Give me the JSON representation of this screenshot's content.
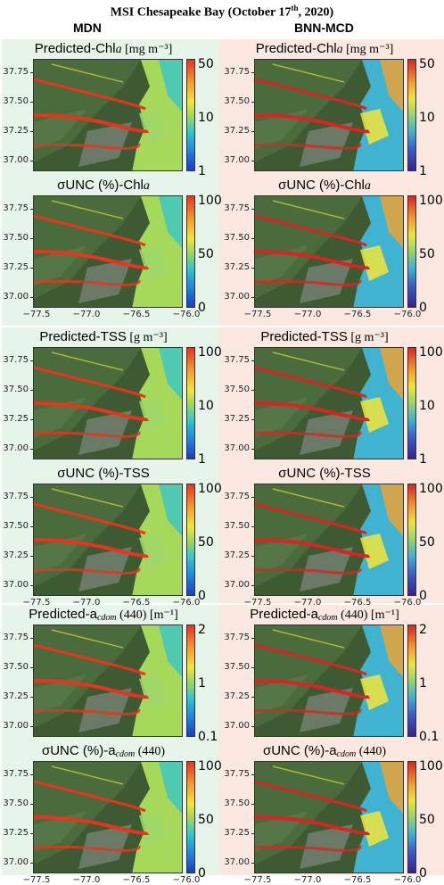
{
  "figure": {
    "title_main": "MSI Chesapeake Bay (October 17",
    "title_sup": "th",
    "title_end": ", 2020)",
    "col_left": "MDN",
    "col_right": "BNN-MCD"
  },
  "axes": {
    "y_ticks": [
      "37.75",
      "37.50",
      "37.25",
      "37.00"
    ],
    "x_ticks": [
      "−77.5",
      "−77.0",
      "−76.5",
      "−76.0"
    ]
  },
  "panels": [
    {
      "row": 1,
      "model": "MDN",
      "title_pre": "Predicted-Chl",
      "title_var": "a",
      "title_unit": " [mg m⁻³]",
      "cbar_ticks": [
        "50",
        "10",
        "1"
      ],
      "cmap": "std"
    },
    {
      "row": 1,
      "model": "BNN-MCD",
      "title_pre": "Predicted-Chl",
      "title_var": "a",
      "title_unit": " [mg m⁻³]",
      "cbar_ticks": [
        "50",
        "10",
        "1"
      ],
      "cmap": "bnn"
    },
    {
      "row": 2,
      "model": "MDN",
      "title_pre": "σUNC (%)-Chl",
      "title_var": "a",
      "title_unit": "",
      "cbar_ticks": [
        "100",
        "50",
        "0"
      ],
      "cmap": "std"
    },
    {
      "row": 2,
      "model": "BNN-MCD",
      "title_pre": "σUNC (%)-Chl",
      "title_var": "a",
      "title_unit": "",
      "cbar_ticks": [
        "100",
        "50",
        "0"
      ],
      "cmap": "bnn"
    },
    {
      "row": 3,
      "model": "MDN",
      "title_pre": "Predicted-TSS",
      "title_var": "",
      "title_unit": " [g m⁻³]",
      "cbar_ticks": [
        "100",
        "10",
        "1"
      ],
      "cmap": "std"
    },
    {
      "row": 3,
      "model": "BNN-MCD",
      "title_pre": "Predicted-TSS",
      "title_var": "",
      "title_unit": " [g m⁻³]",
      "cbar_ticks": [
        "100",
        "10",
        "1"
      ],
      "cmap": "bnn"
    },
    {
      "row": 4,
      "model": "MDN",
      "title_pre": "σUNC (%)-TSS",
      "title_var": "",
      "title_unit": "",
      "cbar_ticks": [
        "100",
        "50",
        "0"
      ],
      "cmap": "std"
    },
    {
      "row": 4,
      "model": "BNN-MCD",
      "title_pre": "σUNC (%)-TSS",
      "title_var": "",
      "title_unit": "",
      "cbar_ticks": [
        "100",
        "50",
        "0"
      ],
      "cmap": "bnn"
    },
    {
      "row": 5,
      "model": "MDN",
      "title_pre": "Predicted-a",
      "title_var": "cdom",
      "title_unit": " (440) [m⁻¹]",
      "cbar_ticks": [
        "2",
        "1",
        "0.1"
      ],
      "cmap": "std"
    },
    {
      "row": 5,
      "model": "BNN-MCD",
      "title_pre": "Predicted-a",
      "title_var": "cdom",
      "title_unit": " (440) [m⁻¹]",
      "cbar_ticks": [
        "2",
        "1",
        "0.1"
      ],
      "cmap": "bnn"
    },
    {
      "row": 6,
      "model": "MDN",
      "title_pre": "σUNC (%)-a",
      "title_var": "cdom",
      "title_unit": " (440)",
      "cbar_ticks": [
        "100",
        "50",
        "0"
      ],
      "cmap": "std"
    },
    {
      "row": 6,
      "model": "BNN-MCD",
      "title_pre": "σUNC (%)-a",
      "title_var": "cdom",
      "title_unit": " (440)",
      "cbar_ticks": [
        "100",
        "50",
        "0"
      ],
      "cmap": "bnn"
    }
  ],
  "colors": {
    "mdn_background": "#e6f4ea",
    "bnn_background": "#fbe8e0",
    "land": "#3d5a32",
    "water_low": "#38c7c9",
    "water_high": "#e8331e"
  }
}
